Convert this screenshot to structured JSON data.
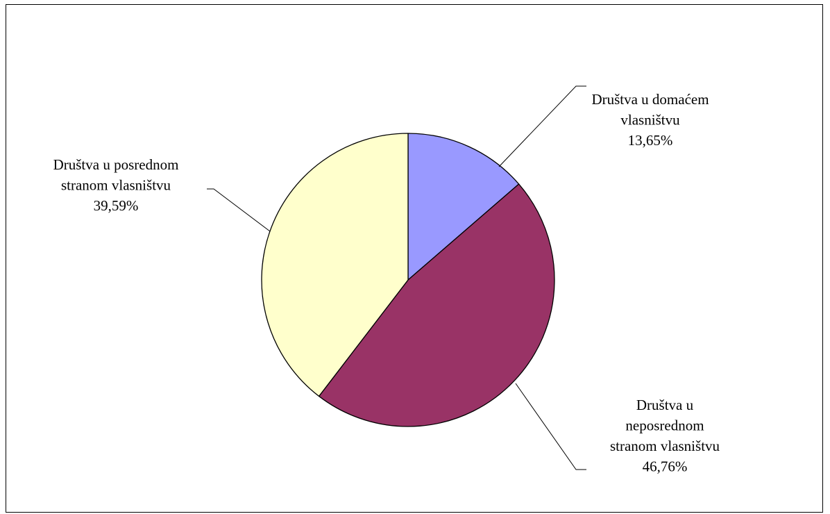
{
  "chart_data": {
    "type": "pie",
    "slices": [
      {
        "label_lines": [
          "Društva u domaćem",
          "vlasništvu"
        ],
        "value_label": "13,65%",
        "value": 13.65,
        "color": "#9999ff"
      },
      {
        "label_lines": [
          "Društva u",
          "neposrednom",
          "stranom vlasništvu"
        ],
        "value_label": "46,76%",
        "value": 46.76,
        "color": "#993366"
      },
      {
        "label_lines": [
          "Društva u posrednom",
          "stranom vlasništvu"
        ],
        "value_label": "39,59%",
        "value": 39.59,
        "color": "#ffffcc"
      }
    ],
    "start_angle_deg": 0,
    "direction": "clockwise",
    "border_color": "#000000"
  }
}
